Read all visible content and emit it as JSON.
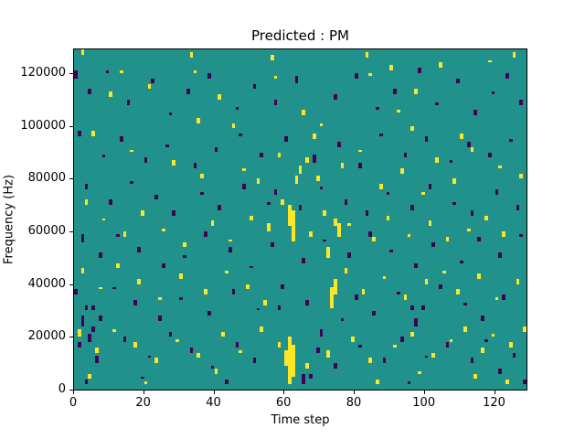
{
  "chart_data": {
    "type": "heatmap",
    "title": "Predicted : PM",
    "xlabel": "Time step",
    "ylabel": "Frequency (Hz)",
    "x_range": [
      0,
      129
    ],
    "y_range": [
      0,
      129000
    ],
    "freq_bin_hz": 1000,
    "x_ticks": [
      0,
      20,
      40,
      60,
      80,
      100,
      120
    ],
    "x_tick_labels": [
      "0",
      "20",
      "40",
      "60",
      "80",
      "100",
      "120"
    ],
    "y_ticks": [
      0,
      20000,
      40000,
      60000,
      80000,
      100000,
      120000
    ],
    "y_tick_labels": [
      "0",
      "20000",
      "40000",
      "60000",
      "80000",
      "100000",
      "120000"
    ],
    "colors": {
      "low": "#440154",
      "mid": "#21918c",
      "high": "#fde725"
    },
    "legend": "none",
    "grid": false,
    "cells": {
      "yellow": [
        [
          61,
          2000,
          18
        ],
        [
          62,
          5000,
          12
        ],
        [
          60,
          9000,
          6
        ],
        [
          62,
          56000,
          12
        ],
        [
          61,
          62000,
          8
        ],
        [
          63,
          78000,
          3
        ],
        [
          73,
          31000,
          8
        ],
        [
          74,
          36000,
          6
        ],
        [
          72,
          50000,
          4
        ],
        [
          75,
          58000,
          5
        ],
        [
          74,
          62000,
          3
        ],
        [
          2,
          127000,
          2
        ],
        [
          10,
          111000,
          2
        ],
        [
          13,
          120000,
          1
        ],
        [
          21,
          114000,
          2
        ],
        [
          33,
          126000,
          2
        ],
        [
          34,
          120000,
          1
        ],
        [
          41,
          110000,
          2
        ],
        [
          45,
          99000,
          2
        ],
        [
          56,
          125000,
          2
        ],
        [
          57,
          118000,
          1
        ],
        [
          65,
          104000,
          2
        ],
        [
          68,
          95000,
          2
        ],
        [
          70,
          100000,
          1
        ],
        [
          83,
          126000,
          2
        ],
        [
          84,
          119000,
          1
        ],
        [
          90,
          121000,
          2
        ],
        [
          92,
          105000,
          1
        ],
        [
          97,
          112000,
          2
        ],
        [
          104,
          122000,
          2
        ],
        [
          110,
          95000,
          2
        ],
        [
          118,
          124000,
          1
        ],
        [
          125,
          126000,
          2
        ],
        [
          5,
          96000,
          2
        ],
        [
          16,
          90000,
          1
        ],
        [
          28,
          85000,
          2
        ],
        [
          36,
          80000,
          2
        ],
        [
          48,
          83000,
          1
        ],
        [
          52,
          78000,
          2
        ],
        [
          58,
          88000,
          2
        ],
        [
          64,
          82000,
          3
        ],
        [
          66,
          86000,
          2
        ],
        [
          69,
          79000,
          2
        ],
        [
          76,
          84000,
          2
        ],
        [
          81,
          90000,
          1
        ],
        [
          87,
          76000,
          2
        ],
        [
          93,
          82000,
          2
        ],
        [
          99,
          74000,
          1
        ],
        [
          103,
          86000,
          2
        ],
        [
          108,
          78000,
          2
        ],
        [
          113,
          90000,
          2
        ],
        [
          121,
          84000,
          1
        ],
        [
          127,
          80000,
          2
        ],
        [
          3,
          70000,
          2
        ],
        [
          8,
          64000,
          1
        ],
        [
          14,
          58000,
          2
        ],
        [
          19,
          66000,
          2
        ],
        [
          25,
          60000,
          1
        ],
        [
          31,
          54000,
          2
        ],
        [
          39,
          62000,
          2
        ],
        [
          44,
          56000,
          1
        ],
        [
          50,
          64000,
          2
        ],
        [
          55,
          60000,
          3
        ],
        [
          59,
          70000,
          2
        ],
        [
          67,
          58000,
          2
        ],
        [
          71,
          66000,
          2
        ],
        [
          78,
          62000,
          1
        ],
        [
          85,
          56000,
          2
        ],
        [
          89,
          64000,
          2
        ],
        [
          95,
          58000,
          1
        ],
        [
          101,
          62000,
          2
        ],
        [
          106,
          56000,
          2
        ],
        [
          112,
          60000,
          1
        ],
        [
          117,
          64000,
          2
        ],
        [
          122,
          58000,
          2
        ],
        [
          2,
          44000,
          2
        ],
        [
          7,
          38000,
          1
        ],
        [
          12,
          46000,
          2
        ],
        [
          18,
          40000,
          2
        ],
        [
          24,
          34000,
          1
        ],
        [
          30,
          42000,
          2
        ],
        [
          37,
          36000,
          2
        ],
        [
          43,
          44000,
          1
        ],
        [
          49,
          38000,
          2
        ],
        [
          54,
          32000,
          2
        ],
        [
          77,
          44000,
          2
        ],
        [
          82,
          36000,
          2
        ],
        [
          88,
          42000,
          1
        ],
        [
          94,
          34000,
          2
        ],
        [
          100,
          40000,
          2
        ],
        [
          105,
          44000,
          1
        ],
        [
          109,
          36000,
          2
        ],
        [
          115,
          42000,
          2
        ],
        [
          120,
          34000,
          1
        ],
        [
          126,
          40000,
          2
        ],
        [
          1,
          20000,
          3
        ],
        [
          6,
          14000,
          2
        ],
        [
          11,
          22000,
          1
        ],
        [
          17,
          16000,
          2
        ],
        [
          23,
          10000,
          2
        ],
        [
          29,
          18000,
          1
        ],
        [
          35,
          12000,
          2
        ],
        [
          42,
          20000,
          2
        ],
        [
          47,
          14000,
          1
        ],
        [
          53,
          22000,
          2
        ],
        [
          58,
          16000,
          2
        ],
        [
          66,
          8000,
          2
        ],
        [
          72,
          12000,
          3
        ],
        [
          79,
          18000,
          2
        ],
        [
          84,
          10000,
          2
        ],
        [
          91,
          16000,
          1
        ],
        [
          96,
          20000,
          2
        ],
        [
          102,
          12000,
          2
        ],
        [
          107,
          18000,
          1
        ],
        [
          111,
          22000,
          2
        ],
        [
          116,
          14000,
          2
        ],
        [
          119,
          20000,
          1
        ],
        [
          124,
          16000,
          2
        ],
        [
          128,
          22000,
          2
        ],
        [
          4,
          4000,
          2
        ],
        [
          20,
          2000,
          1
        ],
        [
          40,
          6000,
          2
        ],
        [
          86,
          2000,
          2
        ],
        [
          98,
          6000,
          1
        ],
        [
          114,
          4000,
          2
        ],
        [
          123,
          2000,
          2
        ],
        [
          96,
          98000,
          2
        ],
        [
          35,
          101000,
          2
        ]
      ],
      "purple": [
        [
          0,
          118000,
          3
        ],
        [
          4,
          112000,
          2
        ],
        [
          9,
          120000,
          1
        ],
        [
          15,
          108000,
          2
        ],
        [
          22,
          116000,
          2
        ],
        [
          27,
          104000,
          1
        ],
        [
          32,
          112000,
          2
        ],
        [
          38,
          118000,
          2
        ],
        [
          46,
          106000,
          1
        ],
        [
          51,
          114000,
          2
        ],
        [
          57,
          108000,
          2
        ],
        [
          63,
          116000,
          3
        ],
        [
          74,
          110000,
          2
        ],
        [
          80,
          118000,
          2
        ],
        [
          86,
          106000,
          1
        ],
        [
          91,
          112000,
          2
        ],
        [
          98,
          120000,
          2
        ],
        [
          103,
          108000,
          1
        ],
        [
          109,
          116000,
          2
        ],
        [
          114,
          104000,
          2
        ],
        [
          119,
          112000,
          1
        ],
        [
          123,
          118000,
          2
        ],
        [
          127,
          108000,
          2
        ],
        [
          1,
          96000,
          2
        ],
        [
          8,
          88000,
          1
        ],
        [
          13,
          94000,
          2
        ],
        [
          20,
          86000,
          2
        ],
        [
          26,
          92000,
          1
        ],
        [
          34,
          84000,
          2
        ],
        [
          40,
          90000,
          2
        ],
        [
          47,
          96000,
          1
        ],
        [
          53,
          88000,
          2
        ],
        [
          60,
          94000,
          2
        ],
        [
          68,
          86000,
          3
        ],
        [
          75,
          92000,
          2
        ],
        [
          81,
          84000,
          2
        ],
        [
          87,
          96000,
          1
        ],
        [
          94,
          88000,
          2
        ],
        [
          100,
          94000,
          2
        ],
        [
          107,
          86000,
          1
        ],
        [
          112,
          92000,
          2
        ],
        [
          118,
          88000,
          2
        ],
        [
          124,
          94000,
          1
        ],
        [
          3,
          76000,
          2
        ],
        [
          10,
          70000,
          2
        ],
        [
          16,
          78000,
          1
        ],
        [
          23,
          72000,
          2
        ],
        [
          28,
          66000,
          2
        ],
        [
          36,
          74000,
          1
        ],
        [
          41,
          68000,
          2
        ],
        [
          48,
          76000,
          2
        ],
        [
          55,
          70000,
          1
        ],
        [
          57,
          74000,
          2
        ],
        [
          64,
          68000,
          2
        ],
        [
          70,
          76000,
          1
        ],
        [
          77,
          70000,
          2
        ],
        [
          83,
          66000,
          2
        ],
        [
          89,
          74000,
          1
        ],
        [
          96,
          68000,
          2
        ],
        [
          101,
          76000,
          2
        ],
        [
          108,
          70000,
          1
        ],
        [
          113,
          66000,
          2
        ],
        [
          120,
          74000,
          2
        ],
        [
          126,
          68000,
          2
        ],
        [
          2,
          56000,
          3
        ],
        [
          7,
          50000,
          2
        ],
        [
          12,
          58000,
          1
        ],
        [
          18,
          52000,
          2
        ],
        [
          25,
          46000,
          2
        ],
        [
          31,
          50000,
          1
        ],
        [
          37,
          58000,
          2
        ],
        [
          44,
          52000,
          2
        ],
        [
          50,
          46000,
          1
        ],
        [
          56,
          54000,
          2
        ],
        [
          65,
          48000,
          2
        ],
        [
          71,
          56000,
          1
        ],
        [
          78,
          50000,
          2
        ],
        [
          84,
          58000,
          2
        ],
        [
          90,
          52000,
          1
        ],
        [
          97,
          46000,
          2
        ],
        [
          102,
          54000,
          2
        ],
        [
          110,
          48000,
          1
        ],
        [
          115,
          56000,
          2
        ],
        [
          121,
          50000,
          2
        ],
        [
          127,
          58000,
          1
        ],
        [
          0,
          36000,
          2
        ],
        [
          5,
          30000,
          2
        ],
        [
          11,
          38000,
          1
        ],
        [
          17,
          32000,
          2
        ],
        [
          24,
          26000,
          2
        ],
        [
          30,
          34000,
          1
        ],
        [
          38,
          28000,
          2
        ],
        [
          45,
          36000,
          2
        ],
        [
          52,
          30000,
          1
        ],
        [
          59,
          38000,
          2
        ],
        [
          66,
          32000,
          2
        ],
        [
          76,
          26000,
          1
        ],
        [
          80,
          34000,
          2
        ],
        [
          85,
          28000,
          2
        ],
        [
          92,
          36000,
          1
        ],
        [
          99,
          30000,
          2
        ],
        [
          104,
          38000,
          2
        ],
        [
          111,
          32000,
          1
        ],
        [
          116,
          26000,
          2
        ],
        [
          122,
          34000,
          2
        ],
        [
          1,
          16000,
          2
        ],
        [
          6,
          10000,
          3
        ],
        [
          14,
          18000,
          2
        ],
        [
          21,
          12000,
          1
        ],
        [
          27,
          20000,
          2
        ],
        [
          33,
          14000,
          2
        ],
        [
          39,
          8000,
          1
        ],
        [
          46,
          16000,
          2
        ],
        [
          51,
          10000,
          2
        ],
        [
          69,
          14000,
          2
        ],
        [
          74,
          8000,
          2
        ],
        [
          81,
          16000,
          1
        ],
        [
          88,
          10000,
          2
        ],
        [
          93,
          18000,
          2
        ],
        [
          100,
          12000,
          1
        ],
        [
          106,
          16000,
          2
        ],
        [
          113,
          10000,
          2
        ],
        [
          117,
          18000,
          1
        ],
        [
          125,
          12000,
          2
        ],
        [
          3,
          2000,
          2
        ],
        [
          19,
          4000,
          1
        ],
        [
          43,
          2000,
          2
        ],
        [
          67,
          4000,
          2
        ],
        [
          95,
          2000,
          1
        ],
        [
          121,
          6000,
          2
        ],
        [
          128,
          2000,
          2
        ],
        [
          2,
          24000,
          4
        ],
        [
          4,
          18000,
          3
        ],
        [
          5,
          22000,
          2
        ],
        [
          3,
          30000,
          2
        ],
        [
          7,
          26000,
          2
        ],
        [
          65,
          2000,
          4
        ],
        [
          70,
          20000,
          3
        ],
        [
          58,
          30000,
          2
        ],
        [
          97,
          24000,
          3
        ],
        [
          96,
          30000,
          2
        ]
      ]
    }
  }
}
